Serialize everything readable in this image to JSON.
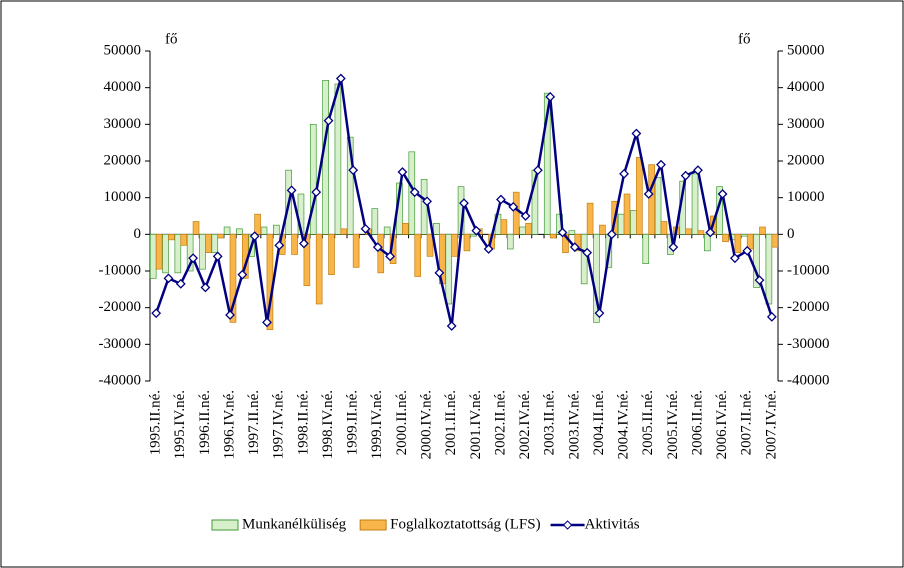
{
  "chart_data": {
    "type": "bar_line",
    "y_label": "fő",
    "y2_label": "fő",
    "categories": [
      "1995.II.né.",
      null,
      "1995.IV.né.",
      null,
      "1996.II.né.",
      null,
      "1996.IV.né.",
      null,
      "1997.II.né.",
      null,
      "1997.IV.né.",
      null,
      "1998.II.né.",
      null,
      "1998.IV.né.",
      null,
      "1999.II.né.",
      null,
      "1999.IV.né.",
      null,
      "2000.II.né.",
      null,
      "2000.IV.né.",
      null,
      "2001.II.né.",
      null,
      "2001.IV.né.",
      null,
      "2002.II.né.",
      null,
      "2002.IV.né.",
      null,
      "2003.II.né.",
      null,
      "2003.IV.né.",
      null,
      "2004.II.né.",
      null,
      "2004.IV.né.",
      null,
      "2005.II.né.",
      null,
      "2005.IV.né.",
      null,
      "2006.II.né.",
      null,
      "2006.IV.né.",
      null,
      "2007.II.né.",
      null,
      "2007.IV.né."
    ],
    "series": [
      {
        "name": "Munkanélküliség",
        "type": "bar",
        "color": "#d8efcc",
        "stroke": "#3f9a34",
        "values": [
          -12000,
          -10500,
          -10500,
          -10000,
          -9500,
          -5000,
          2000,
          1500,
          -6000,
          2000,
          2500,
          17500,
          11000,
          30000,
          42000,
          41000,
          26500,
          0,
          7000,
          2000,
          14000,
          22500,
          15000,
          3000,
          -19000,
          13000,
          -500,
          0,
          5500,
          -4000,
          2000,
          17500,
          38500,
          5500,
          1000,
          -13500,
          -24000,
          -9000,
          5500,
          6500,
          -8000,
          15500,
          -5500,
          14500,
          16500,
          -4500,
          13000,
          -1500,
          -500,
          -14500,
          -19000
        ]
      },
      {
        "name": "Foglalkoztatottság (LFS)",
        "type": "bar",
        "color": "#f7b54a",
        "stroke": "#c47f12",
        "values": [
          -9500,
          -1500,
          -3000,
          3500,
          -5000,
          -1000,
          -24000,
          -12000,
          5500,
          -26000,
          -5500,
          -5500,
          -14000,
          -19000,
          -11000,
          1500,
          -9000,
          1500,
          -10500,
          -8000,
          3000,
          -11500,
          -6000,
          -13500,
          -6000,
          -4500,
          1500,
          -4000,
          4000,
          11500,
          3000,
          0,
          -1000,
          -5000,
          -4500,
          8500,
          2500,
          9000,
          11000,
          21000,
          19000,
          3500,
          2000,
          1500,
          1000,
          5000,
          -2000,
          -5000,
          -4000,
          2000,
          -3500
        ]
      },
      {
        "name": "Aktivitás",
        "type": "line",
        "axis": "y2",
        "color": "#000080",
        "values": [
          -21500,
          -12000,
          -13500,
          -6500,
          -14500,
          -6000,
          -22000,
          -11000,
          -500,
          -24000,
          -3000,
          12000,
          -2500,
          11500,
          31000,
          42500,
          17500,
          1500,
          -3500,
          -6000,
          17000,
          11500,
          9000,
          -10500,
          -25000,
          8500,
          1000,
          -4000,
          9500,
          7500,
          5000,
          17500,
          37500,
          500,
          -3500,
          -5000,
          -21500,
          0,
          16500,
          27500,
          11000,
          19000,
          -3500,
          16000,
          17500,
          500,
          11000,
          -6500,
          -4500,
          -12500,
          -22500
        ]
      }
    ],
    "ylim": [
      -40000,
      50000
    ],
    "yticks": [
      -40000,
      -30000,
      -20000,
      -10000,
      0,
      10000,
      20000,
      30000,
      40000,
      50000
    ],
    "y2lim": [
      -40000,
      50000
    ],
    "y2ticks": [
      -40000,
      -30000,
      -20000,
      -10000,
      0,
      10000,
      20000,
      30000,
      40000,
      50000
    ],
    "legend": "bottom"
  }
}
